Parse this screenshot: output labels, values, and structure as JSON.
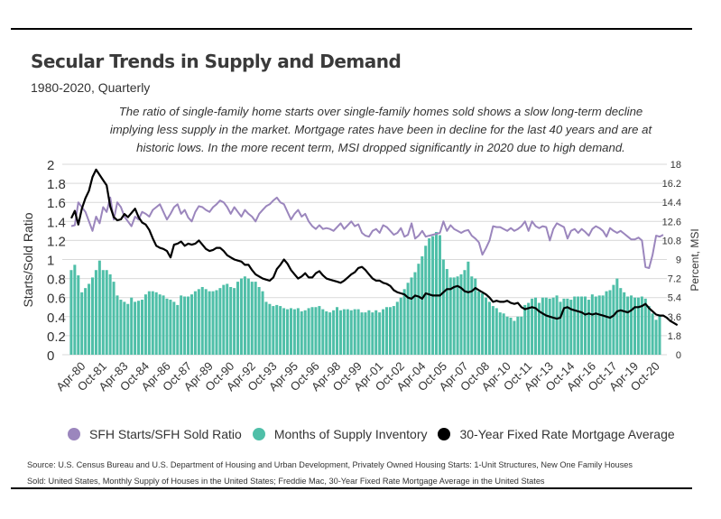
{
  "header": {
    "title": "Secular Trends in Supply and Demand",
    "subtitle": "1980-2020, Quarterly",
    "description": "The ratio of single-family home starts over single-family homes sold shows a slow long-term decline implying less supply in the market. Mortgage rates have been in decline for the last 40 years and are at historic lows. In the more recent term, MSI dropped significantly in 2020 due to high demand."
  },
  "source": "Source:  U.S. Census Bureau and U.S. Department of Housing and Urban Development, Privately Owned Housing Starts: 1-Unit Structures,  New One Family Houses Sold: United States, Monthly Supply of Houses in the United States; Freddie Mac, 30-Year Fixed Rate Mortgage Average in the United States",
  "colors": {
    "ratio": "#9b86bd",
    "msi": "#4fbfa8",
    "mortgage": "#000000",
    "grid": "#d9d9d9",
    "text": "#333333"
  },
  "chart_data": {
    "type": "bar+line",
    "title": "Secular Trends in Supply and Demand",
    "subtitle": "1980-2020, Quarterly",
    "ylabel": "Starts/Sold Ratio",
    "y2label": "Percent, MSI",
    "ylim": [
      0,
      2
    ],
    "y2lim": [
      0,
      18
    ],
    "yticks": [
      "0",
      "0.2",
      "0.4",
      "0.6",
      "0.8",
      "1",
      "1.2",
      "1.4",
      "1.6",
      "1.8",
      "2"
    ],
    "y2ticks": [
      "0",
      "1.8",
      "3.6",
      "5.4",
      "7.2",
      "9",
      "10.8",
      "12.6",
      "14.4",
      "16.2",
      "18"
    ],
    "xtick_labels": [
      "Apr-80",
      "Oct-81",
      "Apr-83",
      "Oct-84",
      "Apr-86",
      "Oct-87",
      "Apr-89",
      "Oct-90",
      "Apr-92",
      "Oct-93",
      "Apr-95",
      "Oct-96",
      "Apr-98",
      "Oct-99",
      "Apr-01",
      "Oct-02",
      "Apr-04",
      "Oct-05",
      "Apr-07",
      "Oct-08",
      "Apr-10",
      "Oct-11",
      "Apr-13",
      "Oct-14",
      "Apr-16",
      "Oct-17",
      "Apr-19",
      "Oct-20"
    ],
    "grid": true,
    "legend_position": "bottom",
    "x_start": "Jan-80",
    "x_end": "Oct-20",
    "frequency": "quarterly",
    "series": [
      {
        "name": "SFH Starts/SFH Sold Ratio",
        "type": "line",
        "axis": "left",
        "color": "#9b86bd",
        "values": [
          1.35,
          1.36,
          1.6,
          1.55,
          1.5,
          1.4,
          1.3,
          1.45,
          1.38,
          1.55,
          1.5,
          1.65,
          1.42,
          1.6,
          1.55,
          1.45,
          1.4,
          1.35,
          1.45,
          1.42,
          1.5,
          1.48,
          1.45,
          1.52,
          1.55,
          1.58,
          1.5,
          1.42,
          1.48,
          1.55,
          1.58,
          1.48,
          1.52,
          1.44,
          1.4,
          1.5,
          1.56,
          1.55,
          1.52,
          1.5,
          1.55,
          1.58,
          1.62,
          1.6,
          1.55,
          1.48,
          1.55,
          1.5,
          1.45,
          1.52,
          1.48,
          1.45,
          1.4,
          1.48,
          1.52,
          1.56,
          1.58,
          1.62,
          1.65,
          1.6,
          1.58,
          1.5,
          1.42,
          1.48,
          1.52,
          1.45,
          1.48,
          1.4,
          1.35,
          1.32,
          1.36,
          1.32,
          1.33,
          1.32,
          1.3,
          1.34,
          1.38,
          1.32,
          1.36,
          1.4,
          1.35,
          1.37,
          1.28,
          1.25,
          1.24,
          1.3,
          1.32,
          1.28,
          1.36,
          1.34,
          1.3,
          1.26,
          1.28,
          1.33,
          1.24,
          1.26,
          1.38,
          1.22,
          1.25,
          1.3,
          1.24,
          1.25,
          1.26,
          1.27,
          1.28,
          1.4,
          1.3,
          1.36,
          1.32,
          1.3,
          1.28,
          1.3,
          1.31,
          1.25,
          1.22,
          1.18,
          1.05,
          1.12,
          1.2,
          1.35,
          1.34,
          1.34,
          1.32,
          1.3,
          1.33,
          1.3,
          1.32,
          1.35,
          1.4,
          1.3,
          1.4,
          1.35,
          1.33,
          1.35,
          1.34,
          1.2,
          1.32,
          1.38,
          1.36,
          1.34,
          1.22,
          1.3,
          1.32,
          1.28,
          1.32,
          1.29,
          1.25,
          1.32,
          1.35,
          1.33,
          1.3,
          1.24,
          1.33,
          1.3,
          1.28,
          1.3,
          1.27,
          1.24,
          1.21,
          1.21,
          1.23,
          1.2,
          0.92,
          0.91,
          1.05,
          1.25,
          1.24,
          1.26
        ]
      },
      {
        "name": "Months of Supply Inventory",
        "type": "bar",
        "axis": "right",
        "color": "#4fbfa8",
        "values": [
          8.0,
          8.5,
          7.5,
          5.9,
          6.3,
          6.7,
          7.3,
          8.0,
          8.9,
          8.0,
          8.0,
          7.6,
          6.9,
          5.6,
          5.2,
          5.0,
          4.8,
          5.4,
          5.0,
          5.1,
          5.2,
          5.7,
          6.0,
          6.0,
          5.9,
          5.7,
          5.6,
          5.3,
          5.2,
          5.0,
          4.7,
          5.6,
          5.5,
          5.5,
          5.7,
          6.0,
          6.2,
          6.4,
          6.2,
          6.0,
          6.0,
          6.1,
          6.3,
          6.6,
          6.7,
          6.4,
          6.3,
          6.9,
          7.2,
          7.4,
          7.2,
          6.9,
          6.9,
          6.4,
          6.0,
          5.0,
          4.8,
          4.6,
          4.7,
          4.6,
          4.4,
          4.3,
          4.4,
          4.3,
          4.4,
          4.1,
          4.2,
          4.4,
          4.5,
          4.5,
          4.6,
          4.3,
          4.1,
          4.0,
          4.2,
          4.5,
          4.2,
          4.3,
          4.3,
          4.2,
          4.3,
          4.3,
          4.0,
          4.0,
          4.2,
          4.0,
          4.2,
          4.0,
          4.3,
          4.5,
          4.5,
          4.6,
          5.0,
          5.4,
          6.2,
          6.8,
          7.3,
          7.8,
          8.6,
          9.3,
          10.3,
          11.0,
          11.2,
          11.6,
          11.3,
          9.0,
          8.1,
          7.3,
          7.3,
          7.4,
          7.6,
          8.0,
          8.8,
          7.4,
          7.2,
          6.0,
          5.8,
          5.4,
          5.0,
          4.6,
          4.4,
          4.0,
          3.9,
          3.6,
          3.5,
          3.2,
          3.6,
          3.6,
          4.7,
          4.9,
          5.3,
          5.4,
          4.9,
          5.4,
          5.4,
          5.3,
          5.4,
          5.6,
          5.0,
          5.3,
          5.3,
          5.2,
          5.5,
          5.5,
          5.5,
          5.5,
          5.2,
          5.7,
          5.5,
          5.6,
          5.6,
          6.0,
          6.1,
          6.6,
          7.2,
          6.3,
          5.9,
          5.5,
          5.6,
          5.4,
          5.4,
          5.5,
          5.3,
          4.6,
          3.9,
          3.3,
          3.8
        ]
      },
      {
        "name": "30-Year Fixed Rate Mortgage Average",
        "type": "line",
        "axis": "right",
        "color": "#000000",
        "values": [
          12.9,
          13.6,
          12.3,
          13.8,
          14.8,
          15.5,
          16.8,
          17.5,
          17.0,
          16.5,
          16.0,
          14.0,
          13.0,
          12.7,
          12.8,
          13.3,
          13.0,
          13.4,
          13.8,
          13.0,
          12.5,
          12.3,
          11.8,
          11.0,
          10.3,
          10.1,
          10.0,
          9.8,
          9.2,
          10.4,
          10.5,
          10.7,
          10.3,
          10.5,
          10.4,
          10.5,
          10.8,
          10.4,
          10.0,
          9.8,
          9.9,
          10.1,
          10.1,
          9.8,
          9.4,
          9.2,
          9.0,
          8.9,
          8.8,
          8.5,
          8.5,
          8.0,
          7.6,
          7.4,
          7.2,
          7.1,
          7.0,
          7.3,
          8.1,
          8.5,
          9.0,
          8.6,
          8.0,
          7.6,
          7.2,
          7.4,
          7.7,
          7.3,
          7.3,
          7.7,
          7.9,
          7.5,
          7.2,
          7.1,
          7.0,
          6.9,
          6.8,
          7.0,
          7.3,
          7.6,
          7.8,
          8.2,
          8.3,
          8.0,
          7.6,
          7.2,
          7.0,
          7.0,
          6.8,
          6.7,
          6.5,
          6.1,
          5.9,
          5.8,
          5.7,
          5.4,
          5.3,
          5.6,
          5.5,
          5.3,
          5.8,
          5.7,
          5.6,
          5.6,
          5.6,
          5.9,
          6.2,
          6.2,
          6.4,
          6.5,
          6.3,
          6.0,
          5.9,
          6.0,
          6.3,
          6.1,
          5.9,
          5.7,
          5.4,
          5.0,
          5.1,
          5.0,
          5.0,
          5.1,
          4.9,
          4.8,
          4.9,
          4.5,
          4.3,
          4.4,
          4.5,
          4.4,
          4.1,
          3.9,
          3.7,
          3.6,
          3.5,
          3.4,
          3.5,
          4.4,
          4.5,
          4.3,
          4.2,
          4.1,
          4.0,
          3.8,
          3.9,
          3.8,
          3.9,
          3.8,
          3.7,
          3.6,
          3.5,
          3.7,
          4.1,
          4.2,
          4.1,
          4.0,
          4.2,
          4.5,
          4.5,
          4.6,
          4.8,
          4.4,
          4.1,
          3.8,
          3.7,
          3.7,
          3.5,
          3.2,
          3.0,
          2.8
        ]
      }
    ]
  }
}
